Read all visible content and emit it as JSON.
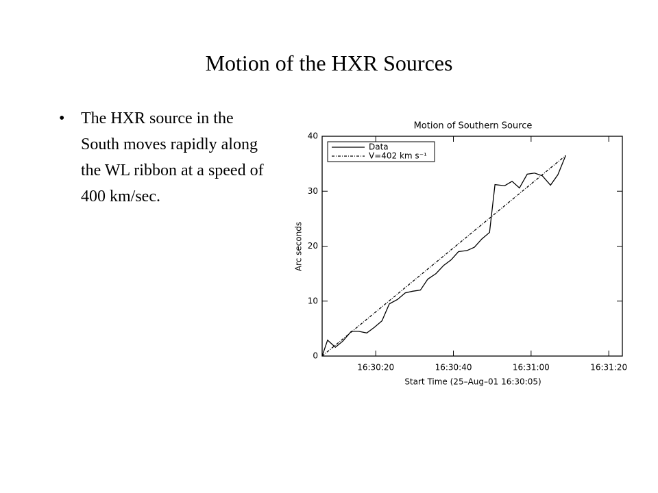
{
  "slide": {
    "title": "Motion of the HXR Sources",
    "bullet": "The HXR source in the South moves rapidly along the WL ribbon at a speed of 400 km/sec."
  },
  "chart_data": {
    "type": "line",
    "title": "Motion of Southern Source",
    "x_label": "Start Time (25–Aug–01 16:30:05)",
    "y_label": "Arc seconds",
    "xlim": [
      6.2,
      83.5
    ],
    "ylim": [
      0,
      40
    ],
    "xticks": [
      {
        "value": 20,
        "label": "16:30:20"
      },
      {
        "value": 40,
        "label": "16:30:40"
      },
      {
        "value": 60,
        "label": "16:31:00"
      },
      {
        "value": 80,
        "label": "16:31:20"
      }
    ],
    "yticks": [
      0,
      10,
      20,
      30,
      40
    ],
    "series": [
      {
        "name": "Data",
        "color": "#000000",
        "dash": "solid",
        "x": [
          6.2,
          7.6,
          9.6,
          11.5,
          13.7,
          15.6,
          17.7,
          19.6,
          21.6,
          23.5,
          25.6,
          27.6,
          29.5,
          31.5,
          33.4,
          35.5,
          37.5,
          39.4,
          41.3,
          43.5,
          45.4,
          47.3,
          49.3,
          50.7,
          53.2,
          55.1,
          57.0,
          59.0,
          60.9,
          62.9,
          65.0,
          66.9,
          68.9
        ],
        "values": [
          0,
          2.9,
          1.6,
          2.7,
          4.5,
          4.5,
          4.2,
          5.2,
          6.4,
          9.5,
          10.3,
          11.5,
          11.8,
          12,
          14,
          15,
          16.5,
          17.5,
          19,
          19.2,
          19.8,
          21.3,
          22.5,
          31.2,
          31,
          31.8,
          30.6,
          33.1,
          33.3,
          32.8,
          31.1,
          33,
          36.5
        ]
      },
      {
        "name": "V=402 km s⁻¹",
        "color": "#000000",
        "dash": "dashdot",
        "x": [
          6.2,
          68.9
        ],
        "values": [
          0,
          36.5
        ]
      }
    ]
  }
}
